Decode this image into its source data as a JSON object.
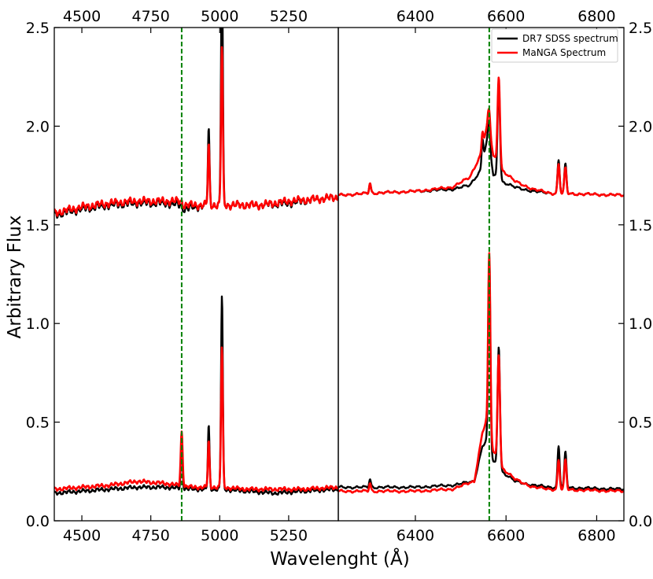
{
  "chart_data": {
    "type": "line",
    "ylabel": "Arbitrary Flux",
    "xlabel": "Wavelenght (Å)",
    "ylim": [
      0.0,
      2.5
    ],
    "y_ticks": [
      "0.0",
      "0.5",
      "1.0",
      "1.5",
      "2.0",
      "2.5"
    ],
    "grid": false,
    "legend_placement": "top-right",
    "colors": {
      "sdss": "#000000",
      "manga": "#ff0000",
      "marker": "#008000"
    },
    "panels": [
      {
        "id": "left",
        "xlim": [
          4400,
          5430
        ],
        "x_ticks": [
          "4500",
          "4750",
          "5000",
          "5250"
        ],
        "x_tick_values": [
          4500,
          4750,
          5000,
          5250
        ],
        "vline": 4862,
        "series": [
          {
            "name": "DR7 SDSS spectrum",
            "curves": [
              {
                "baseline": [
                  [
                    4400,
                    1.55
                  ],
                  [
                    4500,
                    1.58
                  ],
                  [
                    4600,
                    1.6
                  ],
                  [
                    4700,
                    1.61
                  ],
                  [
                    4800,
                    1.61
                  ],
                  [
                    4860,
                    1.6
                  ],
                  [
                    4870,
                    1.58
                  ],
                  [
                    4950,
                    1.6
                  ],
                  [
                    5050,
                    1.6
                  ],
                  [
                    5150,
                    1.6
                  ],
                  [
                    5250,
                    1.61
                  ],
                  [
                    5350,
                    1.63
                  ],
                  [
                    5430,
                    1.64
                  ]
                ],
                "lines": [
                  [
                    4960,
                    0.38,
                    3
                  ],
                  [
                    5008,
                    1.25,
                    3.2
                  ]
                ],
                "noise": 0.012
              },
              {
                "baseline": [
                  [
                    4400,
                    0.14
                  ],
                  [
                    4500,
                    0.15
                  ],
                  [
                    4600,
                    0.16
                  ],
                  [
                    4700,
                    0.17
                  ],
                  [
                    4800,
                    0.17
                  ],
                  [
                    4900,
                    0.16
                  ],
                  [
                    5000,
                    0.16
                  ],
                  [
                    5100,
                    0.15
                  ],
                  [
                    5200,
                    0.14
                  ],
                  [
                    5300,
                    0.15
                  ],
                  [
                    5430,
                    0.16
                  ]
                ],
                "lines": [
                  [
                    4862,
                    0.26,
                    3
                  ],
                  [
                    4960,
                    0.32,
                    3
                  ],
                  [
                    5008,
                    0.98,
                    3.2
                  ]
                ],
                "noise": 0.006
              }
            ]
          },
          {
            "name": "MaNGA Spectrum",
            "curves": [
              {
                "baseline": [
                  [
                    4400,
                    1.56
                  ],
                  [
                    4500,
                    1.59
                  ],
                  [
                    4600,
                    1.61
                  ],
                  [
                    4700,
                    1.62
                  ],
                  [
                    4800,
                    1.62
                  ],
                  [
                    4860,
                    1.62
                  ],
                  [
                    4870,
                    1.6
                  ],
                  [
                    4950,
                    1.6
                  ],
                  [
                    5050,
                    1.6
                  ],
                  [
                    5150,
                    1.6
                  ],
                  [
                    5250,
                    1.62
                  ],
                  [
                    5350,
                    1.63
                  ],
                  [
                    5430,
                    1.64
                  ]
                ],
                "lines": [
                  [
                    4960,
                    0.3,
                    3
                  ],
                  [
                    5008,
                    0.8,
                    3.2
                  ]
                ],
                "noise": 0.012
              },
              {
                "baseline": [
                  [
                    4400,
                    0.16
                  ],
                  [
                    4500,
                    0.17
                  ],
                  [
                    4600,
                    0.18
                  ],
                  [
                    4700,
                    0.2
                  ],
                  [
                    4800,
                    0.19
                  ],
                  [
                    4900,
                    0.17
                  ],
                  [
                    5000,
                    0.17
                  ],
                  [
                    5100,
                    0.16
                  ],
                  [
                    5200,
                    0.16
                  ],
                  [
                    5300,
                    0.16
                  ],
                  [
                    5430,
                    0.17
                  ]
                ],
                "lines": [
                  [
                    4862,
                    0.27,
                    3.5
                  ],
                  [
                    4960,
                    0.23,
                    3
                  ],
                  [
                    5008,
                    0.71,
                    3.2
                  ]
                ],
                "noise": 0.006
              }
            ]
          }
        ]
      },
      {
        "id": "right",
        "xlim": [
          6230,
          6860
        ],
        "x_ticks": [
          "6400",
          "6600",
          "6800"
        ],
        "x_tick_values": [
          6400,
          6600,
          6800
        ],
        "vline": 6563,
        "series": [
          {
            "name": "DR7 SDSS spectrum",
            "curves": [
              {
                "baseline": [
                  [
                    6230,
                    1.65
                  ],
                  [
                    6300,
                    1.66
                  ],
                  [
                    6400,
                    1.67
                  ],
                  [
                    6480,
                    1.68
                  ],
                  [
                    6520,
                    1.7
                  ],
                  [
                    6545,
                    1.78
                  ],
                  [
                    6560,
                    1.95
                  ],
                  [
                    6572,
                    1.75
                  ],
                  [
                    6590,
                    1.72
                  ],
                  [
                    6620,
                    1.69
                  ],
                  [
                    6660,
                    1.67
                  ],
                  [
                    6700,
                    1.66
                  ],
                  [
                    6860,
                    1.65
                  ]
                ],
                "lines": [
                  [
                    6300,
                    0.05,
                    2
                  ],
                  [
                    6548,
                    0.12,
                    2
                  ],
                  [
                    6563,
                    0.12,
                    2
                  ],
                  [
                    6584,
                    0.5,
                    2.6
                  ],
                  [
                    6716,
                    0.17,
                    2.3
                  ],
                  [
                    6731,
                    0.15,
                    2.3
                  ]
                ],
                "noise": 0.004
              },
              {
                "baseline": [
                  [
                    6230,
                    0.17
                  ],
                  [
                    6300,
                    0.17
                  ],
                  [
                    6400,
                    0.17
                  ],
                  [
                    6480,
                    0.18
                  ],
                  [
                    6530,
                    0.2
                  ],
                  [
                    6548,
                    0.38
                  ],
                  [
                    6556,
                    0.4
                  ],
                  [
                    6572,
                    0.3
                  ],
                  [
                    6590,
                    0.25
                  ],
                  [
                    6620,
                    0.2
                  ],
                  [
                    6660,
                    0.18
                  ],
                  [
                    6700,
                    0.17
                  ],
                  [
                    6860,
                    0.16
                  ]
                ],
                "lines": [
                  [
                    6300,
                    0.04,
                    2
                  ],
                  [
                    6563,
                    0.98,
                    2.4
                  ],
                  [
                    6584,
                    0.62,
                    2.6
                  ],
                  [
                    6716,
                    0.21,
                    2.3
                  ],
                  [
                    6731,
                    0.18,
                    2.3
                  ]
                ],
                "noise": 0.004
              }
            ]
          },
          {
            "name": "MaNGA Spectrum",
            "curves": [
              {
                "baseline": [
                  [
                    6230,
                    1.65
                  ],
                  [
                    6300,
                    1.66
                  ],
                  [
                    6400,
                    1.67
                  ],
                  [
                    6480,
                    1.69
                  ],
                  [
                    6520,
                    1.74
                  ],
                  [
                    6545,
                    1.86
                  ],
                  [
                    6560,
                    2.02
                  ],
                  [
                    6572,
                    1.85
                  ],
                  [
                    6590,
                    1.78
                  ],
                  [
                    6620,
                    1.72
                  ],
                  [
                    6660,
                    1.68
                  ],
                  [
                    6700,
                    1.66
                  ],
                  [
                    6860,
                    1.65
                  ]
                ],
                "lines": [
                  [
                    6300,
                    0.05,
                    2
                  ],
                  [
                    6548,
                    0.08,
                    2
                  ],
                  [
                    6563,
                    0.1,
                    2.2
                  ],
                  [
                    6584,
                    0.45,
                    2.6
                  ],
                  [
                    6716,
                    0.15,
                    2.3
                  ],
                  [
                    6731,
                    0.13,
                    2.3
                  ]
                ],
                "noise": 0.004
              },
              {
                "baseline": [
                  [
                    6230,
                    0.15
                  ],
                  [
                    6300,
                    0.15
                  ],
                  [
                    6400,
                    0.15
                  ],
                  [
                    6480,
                    0.16
                  ],
                  [
                    6530,
                    0.2
                  ],
                  [
                    6548,
                    0.45
                  ],
                  [
                    6556,
                    0.5
                  ],
                  [
                    6572,
                    0.35
                  ],
                  [
                    6590,
                    0.27
                  ],
                  [
                    6620,
                    0.21
                  ],
                  [
                    6660,
                    0.17
                  ],
                  [
                    6700,
                    0.16
                  ],
                  [
                    6860,
                    0.15
                  ]
                ],
                "lines": [
                  [
                    6300,
                    0.04,
                    2
                  ],
                  [
                    6563,
                    0.92,
                    2.4
                  ],
                  [
                    6584,
                    0.55,
                    2.6
                  ],
                  [
                    6716,
                    0.15,
                    2.3
                  ],
                  [
                    6731,
                    0.15,
                    2.3
                  ]
                ],
                "noise": 0.004
              }
            ]
          }
        ]
      }
    ]
  }
}
